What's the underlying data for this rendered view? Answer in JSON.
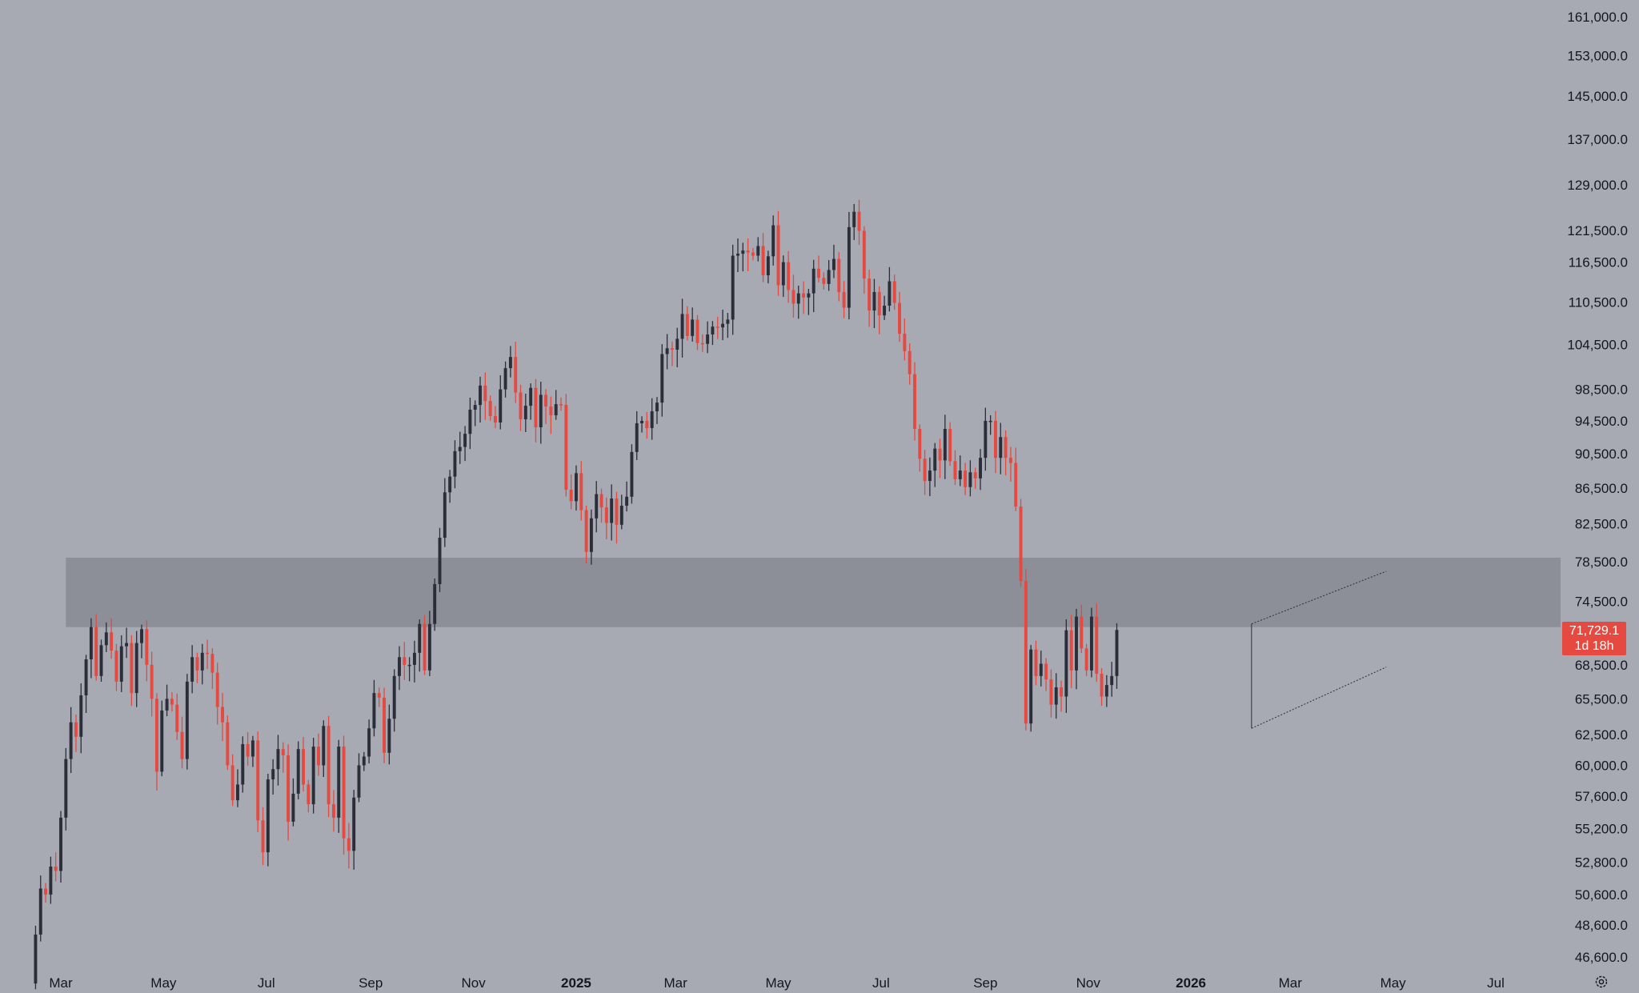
{
  "colors": {
    "background": "#a7a9b3",
    "up_candle": "#2a2e39",
    "down_candle": "#e5493f",
    "zone": "#8c8f98",
    "price_label": "#e5493f",
    "text": "#131722"
  },
  "price_label": {
    "price": "71,729.1",
    "countdown": "1d 18h"
  },
  "settings_icon": "gear-icon",
  "chart_data": {
    "type": "candlestick",
    "y_scale": "log",
    "ylim": [
      45500,
      168000
    ],
    "y_ticks": [
      "161,000.0",
      "153,000.0",
      "145,000.0",
      "137,000.0",
      "129,000.0",
      "121,500.0",
      "116,500.0",
      "110,500.0",
      "104,500.0",
      "98,500.0",
      "94,500.0",
      "90,500.0",
      "86,500.0",
      "82,500.0",
      "78,500.0",
      "74,500.0",
      "68,500.0",
      "65,500.0",
      "62,500.0",
      "60,000.0",
      "57,600.0",
      "55,200.0",
      "52,800.0",
      "50,600.0",
      "48,600.0",
      "46,600.0"
    ],
    "x_ticks": [
      {
        "label": "Mar",
        "date": "2024-03-01",
        "bold": false
      },
      {
        "label": "May",
        "date": "2024-05-01",
        "bold": false
      },
      {
        "label": "Jul",
        "date": "2024-07-01",
        "bold": false
      },
      {
        "label": "Sep",
        "date": "2024-09-01",
        "bold": false
      },
      {
        "label": "Nov",
        "date": "2024-11-01",
        "bold": false
      },
      {
        "label": "2025",
        "date": "2025-01-01",
        "bold": true
      },
      {
        "label": "Mar",
        "date": "2025-03-01",
        "bold": false
      },
      {
        "label": "May",
        "date": "2025-05-01",
        "bold": false
      },
      {
        "label": "Jul",
        "date": "2025-07-01",
        "bold": false
      },
      {
        "label": "Sep",
        "date": "2025-09-01",
        "bold": false
      },
      {
        "label": "Nov",
        "date": "2025-11-01",
        "bold": false
      },
      {
        "label": "2026",
        "date": "2026-01-01",
        "bold": true
      },
      {
        "label": "Mar",
        "date": "2026-03-01",
        "bold": false
      },
      {
        "label": "May",
        "date": "2026-05-01",
        "bold": false
      },
      {
        "label": "Jul",
        "date": "2026-07-01",
        "bold": false
      }
    ],
    "zone": {
      "low": 72000,
      "high": 78900,
      "start": "2024-03-04"
    },
    "channel": {
      "upper": [
        [
          "2026-02-06",
          72300
        ],
        [
          "2026-04-27",
          77500
        ]
      ],
      "lower": [
        [
          "2026-02-06",
          63000
        ],
        [
          "2026-04-27",
          68300
        ]
      ]
    },
    "last_price": 71729.1,
    "series_anchor": {
      "start": "2024-02-12",
      "interval_days": 3,
      "closes": [
        45000,
        48000,
        51000,
        50600,
        52500,
        52200,
        56000,
        60500,
        63500,
        62300,
        65800,
        69000,
        72000,
        67500,
        70300,
        71500,
        69800,
        67000,
        70200,
        70500,
        66000,
        70500,
        71800,
        68500,
        65500,
        59500,
        64500,
        65500,
        65000,
        62700,
        60500,
        67000,
        69200,
        68000,
        69600,
        69500,
        67800,
        64800,
        63500,
        60000,
        57300,
        58500,
        61700,
        60700,
        62000,
        55800,
        53500,
        58900,
        59700,
        61300,
        60800,
        55700,
        57800,
        61300,
        58500,
        57000,
        61500,
        60000,
        63200,
        57000,
        56000,
        61500,
        54500,
        53600,
        57500,
        60000,
        60700,
        63000,
        66000,
        65600,
        61000,
        63800,
        67500,
        69200,
        68500,
        68500,
        69600,
        72300,
        68000,
        72300,
        76200,
        81000,
        86000,
        87800,
        90800,
        91300,
        92900,
        95900,
        96500,
        99000,
        97000,
        95100,
        94300,
        98500,
        101300,
        102800,
        98100,
        94700,
        96400,
        98700,
        93700,
        97800,
        96300,
        95200,
        96600,
        96500,
        86300,
        85000,
        88200,
        84000,
        79500,
        83100,
        85800,
        84300,
        82600,
        85300,
        82400,
        84500,
        85500,
        90700,
        94200,
        94500,
        93600,
        95700,
        96800,
        103200,
        104000,
        103800,
        105300,
        108800,
        105700,
        108000,
        104700,
        104600,
        105900,
        107000,
        106900,
        107400,
        108000,
        117500,
        117800,
        118300,
        118000,
        117500,
        119000,
        114500,
        117400,
        122300,
        113000,
        116500,
        112300,
        110300,
        111800,
        111200,
        111800,
        115500,
        114100,
        113200,
        115300,
        117000,
        112000,
        109700,
        122000,
        124500,
        121400,
        114000,
        109300,
        112000,
        108600,
        110000,
        113600,
        110400,
        106000,
        103600,
        100500,
        93500,
        89900,
        87300,
        88500,
        91100,
        89700,
        93500,
        89600,
        87500,
        88500,
        86600,
        88300,
        87600,
        90000,
        94500,
        94500,
        90000,
        92500,
        90000,
        89400,
        84400,
        76500,
        63400,
        69900,
        67500,
        68600,
        67200,
        65000,
        66500,
        65700,
        71700,
        68000,
        73000,
        70000,
        68000,
        73000,
        67700,
        65700,
        66700,
        67500,
        71729
      ]
    }
  }
}
